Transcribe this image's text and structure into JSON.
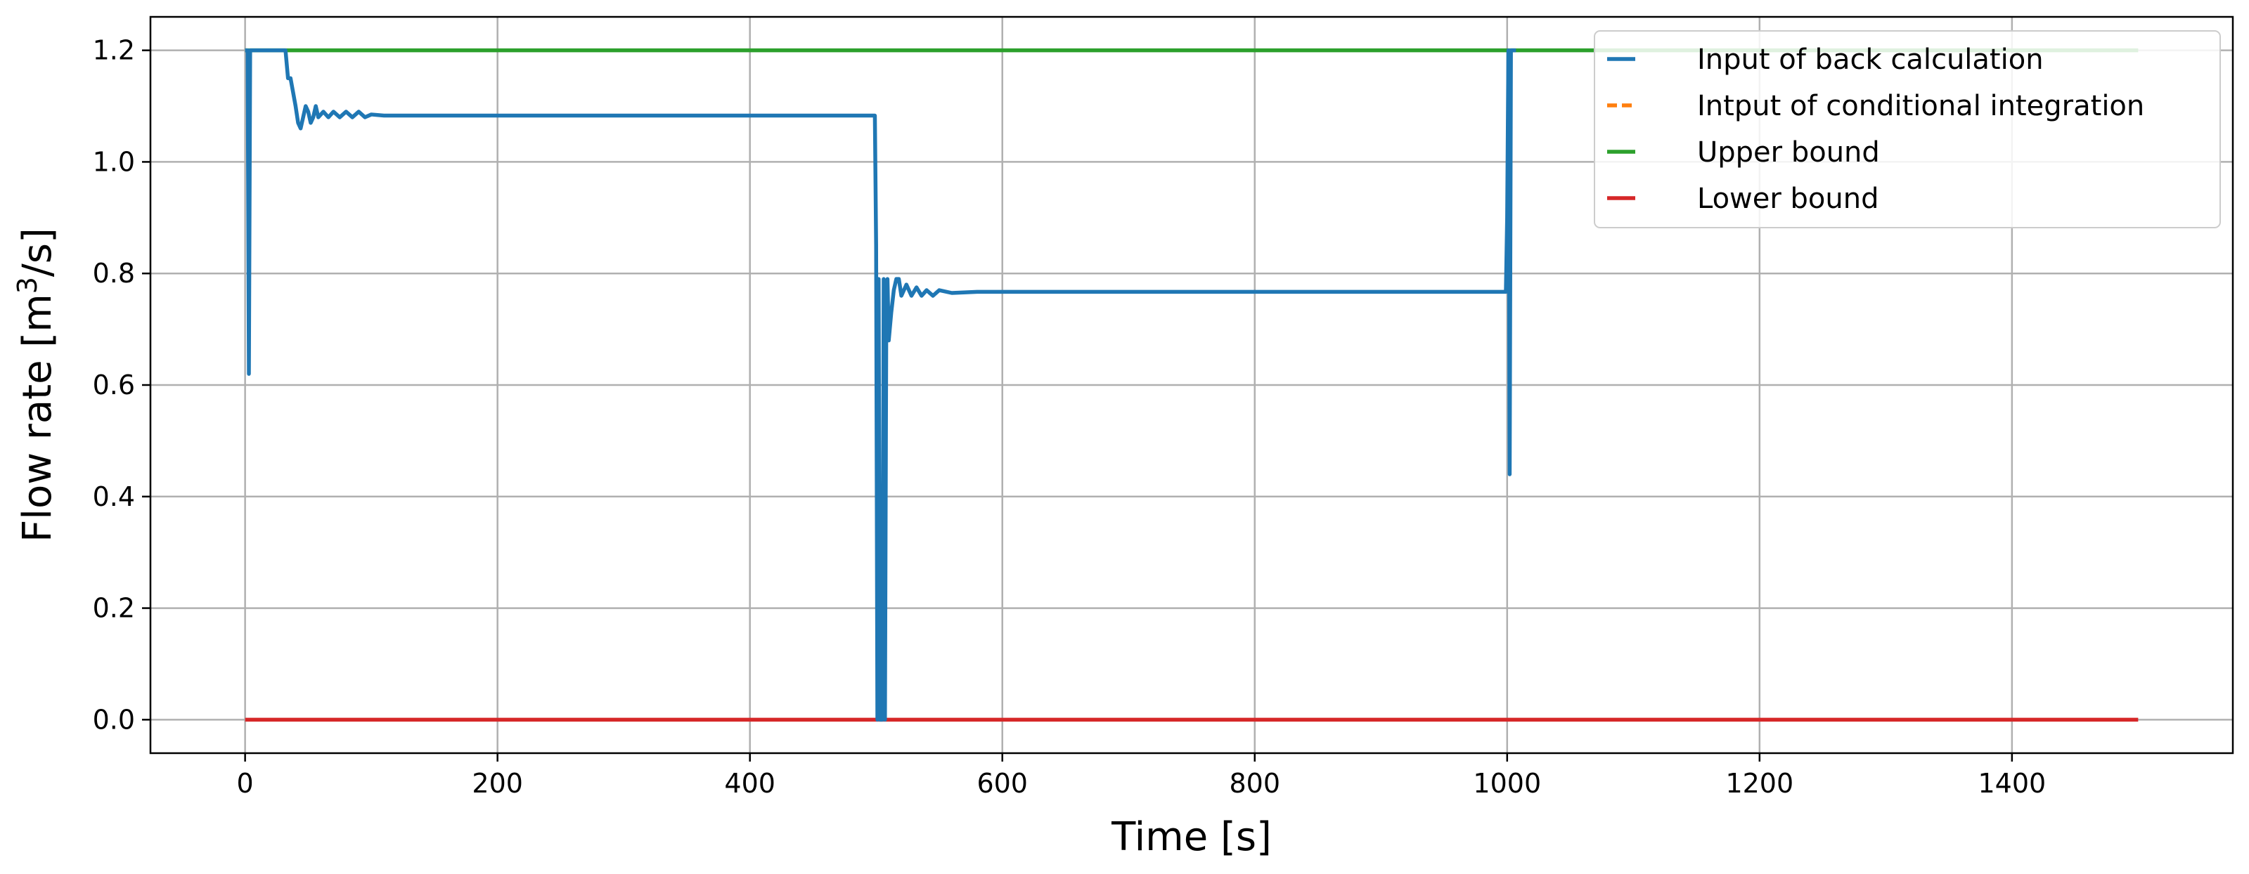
{
  "chart_data": {
    "type": "line",
    "title": "",
    "xlabel": "Time [s]",
    "ylabel_prefix": "Flow rate [m",
    "ylabel_sup": "3",
    "ylabel_suffix": "/s]",
    "xlim": [
      -75,
      1575
    ],
    "ylim": [
      -0.06,
      1.26
    ],
    "xticks": [
      0,
      200,
      400,
      600,
      800,
      1000,
      1200,
      1400
    ],
    "xtick_labels": [
      "0",
      "200",
      "400",
      "600",
      "800",
      "1000",
      "1200",
      "1400"
    ],
    "yticks": [
      0.0,
      0.2,
      0.4,
      0.6,
      0.8,
      1.0,
      1.2
    ],
    "ytick_labels": [
      "0.0",
      "0.2",
      "0.4",
      "0.6",
      "0.8",
      "1.0",
      "1.2"
    ],
    "grid": true,
    "legend_position": "top-right",
    "series": [
      {
        "name": "Input of back calculation",
        "color": "#1f77b4",
        "style": "solid",
        "x": [
          0,
          2,
          3,
          4,
          5,
          30,
          32,
          34,
          36,
          40,
          42,
          44,
          46,
          48,
          50,
          52,
          54,
          56,
          58,
          62,
          66,
          70,
          75,
          80,
          85,
          90,
          95,
          100,
          110,
          130,
          200,
          300,
          400,
          499,
          500,
          501,
          502,
          503,
          504,
          505,
          506,
          507,
          508,
          509,
          510,
          512,
          514,
          516,
          518,
          520,
          524,
          528,
          532,
          536,
          540,
          545,
          550,
          560,
          580,
          600,
          700,
          800,
          900,
          999,
          1000,
          1001,
          1002,
          1003,
          1004,
          1005,
          1006,
          1007
        ],
        "y": [
          1.2,
          1.2,
          0.62,
          1.2,
          1.2,
          1.2,
          1.2,
          1.15,
          1.15,
          1.1,
          1.07,
          1.06,
          1.08,
          1.1,
          1.09,
          1.07,
          1.08,
          1.1,
          1.08,
          1.09,
          1.08,
          1.09,
          1.08,
          1.09,
          1.08,
          1.09,
          1.08,
          1.085,
          1.083,
          1.083,
          1.083,
          1.083,
          1.083,
          1.083,
          0.85,
          0.0,
          0.79,
          0.0,
          0.0,
          0.0,
          0.79,
          0.0,
          0.68,
          0.79,
          0.68,
          0.73,
          0.77,
          0.79,
          0.79,
          0.76,
          0.78,
          0.76,
          0.775,
          0.76,
          0.77,
          0.76,
          0.77,
          0.765,
          0.767,
          0.767,
          0.767,
          0.767,
          0.767,
          0.767,
          0.9,
          1.2,
          0.44,
          1.2,
          1.2,
          1.2,
          1.2,
          1.2
        ]
      },
      {
        "name": "Intput of conditional integration",
        "color": "#ff7f0e",
        "style": "dashed",
        "x": [],
        "y": []
      },
      {
        "name": "Upper bound",
        "color": "#2ca02c",
        "style": "solid",
        "x": [
          0,
          1500
        ],
        "y": [
          1.2,
          1.2
        ]
      },
      {
        "name": "Lower bound",
        "color": "#d62728",
        "style": "solid",
        "x": [
          0,
          1500
        ],
        "y": [
          0.0,
          0.0
        ]
      }
    ]
  }
}
